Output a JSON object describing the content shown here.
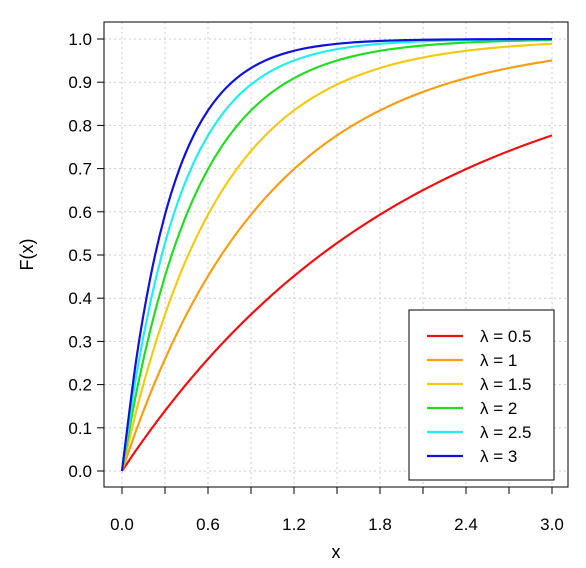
{
  "chart_data": {
    "type": "line",
    "title": "",
    "xlabel": "x",
    "ylabel": "F(x)",
    "xlim": [
      0,
      3
    ],
    "ylim": [
      0,
      1
    ],
    "x_ticks": [
      "0.0",
      "0.6",
      "1.2",
      "1.8",
      "2.4",
      "3.0"
    ],
    "x_minor_ticks": [
      0.3,
      0.9,
      1.5,
      2.1,
      2.7
    ],
    "y_ticks": [
      "0.0",
      "0.1",
      "0.2",
      "0.3",
      "0.4",
      "0.5",
      "0.6",
      "0.7",
      "0.8",
      "0.9",
      "1.0"
    ],
    "grid": true,
    "legend_position": "bottom-right",
    "x": [
      0,
      0.1,
      0.2,
      0.3,
      0.4,
      0.5,
      0.6,
      0.7,
      0.8,
      0.9,
      1.0,
      1.1,
      1.2,
      1.3,
      1.4,
      1.5,
      1.6,
      1.7,
      1.8,
      1.9,
      2.0,
      2.1,
      2.2,
      2.3,
      2.4,
      2.5,
      2.6,
      2.7,
      2.8,
      2.9,
      3.0
    ],
    "series": [
      {
        "name": "λ = 0.5",
        "color": "#ee1111",
        "values": [
          0,
          0.0488,
          0.0952,
          0.1393,
          0.1813,
          0.2212,
          0.2592,
          0.2953,
          0.3297,
          0.3624,
          0.3935,
          0.4231,
          0.4512,
          0.478,
          0.5034,
          0.5276,
          0.5507,
          0.5726,
          0.5934,
          0.6133,
          0.6321,
          0.6501,
          0.6671,
          0.6834,
          0.6988,
          0.7135,
          0.7275,
          0.7408,
          0.7534,
          0.7654,
          0.7769
        ]
      },
      {
        "name": "λ = 1",
        "color": "#f5a014",
        "values": [
          0,
          0.0952,
          0.1813,
          0.2592,
          0.3297,
          0.3935,
          0.4512,
          0.5034,
          0.5507,
          0.5934,
          0.6321,
          0.6671,
          0.6988,
          0.7275,
          0.7534,
          0.7769,
          0.7981,
          0.8173,
          0.8347,
          0.8504,
          0.8647,
          0.8775,
          0.8892,
          0.8997,
          0.9093,
          0.9179,
          0.9257,
          0.9328,
          0.9392,
          0.945,
          0.9502
        ]
      },
      {
        "name": "λ = 1.5",
        "color": "#f2cc14",
        "values": [
          0,
          0.1393,
          0.2592,
          0.3624,
          0.4512,
          0.5276,
          0.5934,
          0.6501,
          0.6988,
          0.7408,
          0.7769,
          0.808,
          0.8347,
          0.8577,
          0.8775,
          0.8946,
          0.9093,
          0.9219,
          0.9328,
          0.9422,
          0.9502,
          0.9571,
          0.9631,
          0.9682,
          0.9727,
          0.9765,
          0.9798,
          0.9826,
          0.985,
          0.9871,
          0.9889
        ]
      },
      {
        "name": "λ = 2",
        "color": "#22dd22",
        "values": [
          0,
          0.1813,
          0.3297,
          0.4512,
          0.5507,
          0.6321,
          0.6988,
          0.7534,
          0.7981,
          0.8347,
          0.8647,
          0.8892,
          0.9093,
          0.9257,
          0.9392,
          0.9502,
          0.9592,
          0.9666,
          0.9727,
          0.9776,
          0.9817,
          0.985,
          0.9877,
          0.9899,
          0.9918,
          0.9933,
          0.9945,
          0.9955,
          0.9963,
          0.997,
          0.9975
        ]
      },
      {
        "name": "λ = 2.5",
        "color": "#22eeee",
        "values": [
          0,
          0.2212,
          0.3935,
          0.5276,
          0.6321,
          0.7135,
          0.7769,
          0.8262,
          0.8647,
          0.8946,
          0.9179,
          0.9361,
          0.9502,
          0.9612,
          0.9698,
          0.9765,
          0.9817,
          0.9857,
          0.9889,
          0.9913,
          0.9933,
          0.9948,
          0.9959,
          0.9968,
          0.9975,
          0.9981,
          0.9985,
          0.9988,
          0.9991,
          0.9993,
          0.9994
        ]
      },
      {
        "name": "λ = 3",
        "color": "#1111dd",
        "values": [
          0,
          0.2592,
          0.4512,
          0.5934,
          0.6988,
          0.7769,
          0.8347,
          0.8775,
          0.9093,
          0.9328,
          0.9502,
          0.9631,
          0.9727,
          0.9798,
          0.985,
          0.9889,
          0.9918,
          0.9939,
          0.9955,
          0.9967,
          0.9975,
          0.9982,
          0.9986,
          0.999,
          0.9993,
          0.9994,
          0.9996,
          0.9997,
          0.9998,
          0.9998,
          0.9999
        ]
      }
    ]
  }
}
